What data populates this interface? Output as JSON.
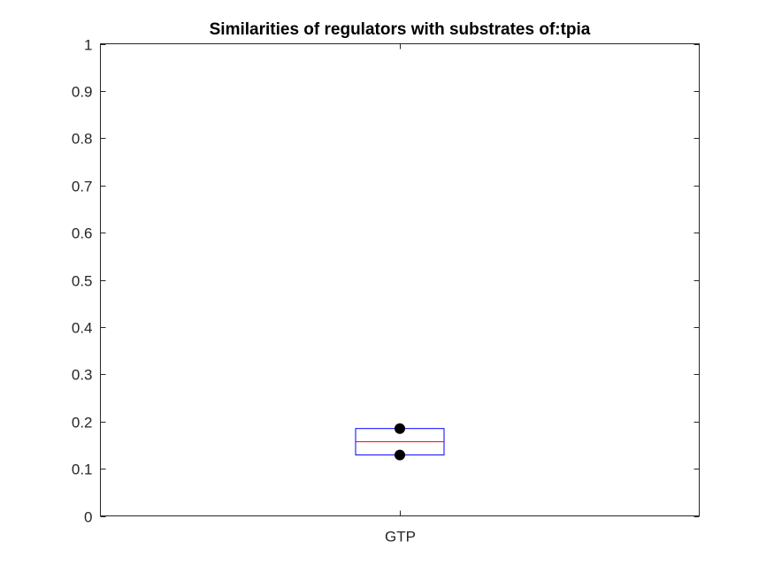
{
  "chart_data": {
    "type": "box",
    "title": "Similarities of regulators with substrates of:tpia",
    "xlabel": "",
    "ylabel": "",
    "ylim": [
      0,
      1
    ],
    "yticks": [
      0,
      0.1,
      0.2,
      0.3,
      0.4,
      0.5,
      0.6,
      0.7,
      0.8,
      0.9,
      1
    ],
    "ytick_labels": [
      "0",
      "0.1",
      "0.2",
      "0.3",
      "0.4",
      "0.5",
      "0.6",
      "0.7",
      "0.8",
      "0.9",
      "1"
    ],
    "categories": [
      "GTP"
    ],
    "boxes": [
      {
        "category": "GTP",
        "q1": 0.129,
        "median": 0.157,
        "q3": 0.185
      }
    ],
    "points": [
      {
        "category": "GTP",
        "y": 0.185
      },
      {
        "category": "GTP",
        "y": 0.129
      }
    ],
    "grid": false,
    "colors": {
      "box": "#0000ff",
      "median": "#ff0000",
      "points": "#000000",
      "axes": "#262626"
    }
  }
}
